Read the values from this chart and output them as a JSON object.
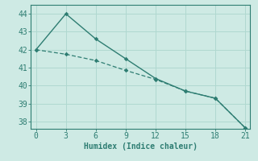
{
  "line1_x": [
    0,
    3,
    6,
    9,
    12,
    15,
    18,
    21
  ],
  "line1_y": [
    42.0,
    44.0,
    42.6,
    41.5,
    40.4,
    39.7,
    39.3,
    37.65
  ],
  "line2_x": [
    0,
    3,
    6,
    9,
    12,
    15,
    18,
    21
  ],
  "line2_y": [
    42.0,
    41.75,
    41.4,
    40.85,
    40.35,
    39.7,
    39.3,
    37.65
  ],
  "line_color": "#2e7d72",
  "xlabel": "Humidex (Indice chaleur)",
  "xlim": [
    -0.5,
    21.5
  ],
  "ylim": [
    37.6,
    44.5
  ],
  "xticks": [
    0,
    3,
    6,
    9,
    12,
    15,
    18,
    21
  ],
  "yticks": [
    38,
    39,
    40,
    41,
    42,
    43,
    44
  ],
  "bg_color": "#ceeae4",
  "grid_color": "#b0d8d0",
  "axis_fontsize": 7,
  "tick_fontsize": 7
}
